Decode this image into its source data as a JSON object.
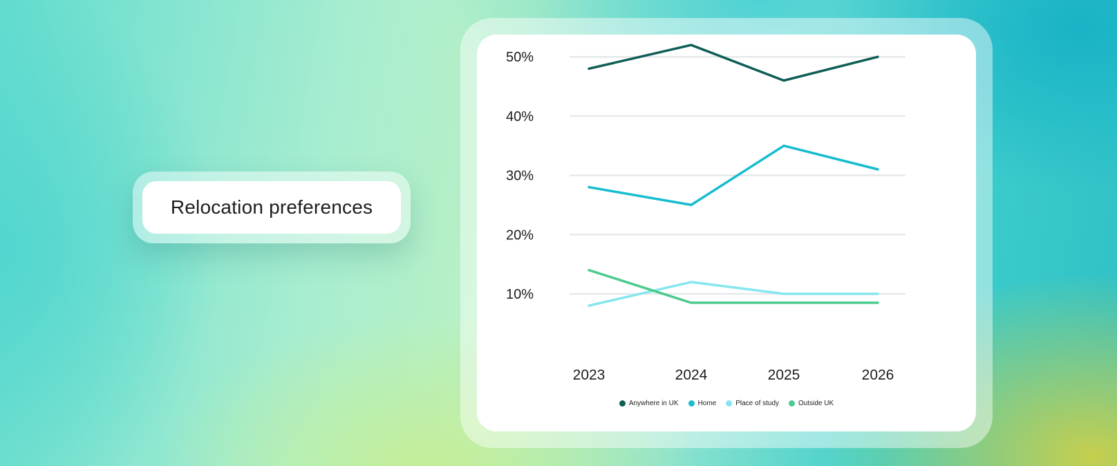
{
  "title": "Relocation preferences",
  "chart_data": {
    "type": "line",
    "categories": [
      "2023",
      "2024",
      "2025",
      "2026"
    ],
    "y_ticks": [
      10,
      20,
      30,
      40,
      50
    ],
    "y_tick_labels": [
      "10%",
      "20%",
      "30%",
      "40%",
      "50%"
    ],
    "ylim": [
      10,
      50
    ],
    "grid": true,
    "legend_position": "bottom",
    "series": [
      {
        "name": "Anywhere in UK",
        "color": "#0e5d56",
        "values": [
          48,
          52,
          46,
          50
        ]
      },
      {
        "name": "Home",
        "color": "#16bccf",
        "values": [
          28,
          25,
          35,
          31
        ]
      },
      {
        "name": "Place of study",
        "color": "#86e6ef",
        "values": [
          8,
          12,
          10,
          10
        ]
      },
      {
        "name": "Outside UK",
        "color": "#4ccb8f",
        "values": [
          14,
          8.5,
          8.5,
          8.5
        ]
      }
    ]
  }
}
